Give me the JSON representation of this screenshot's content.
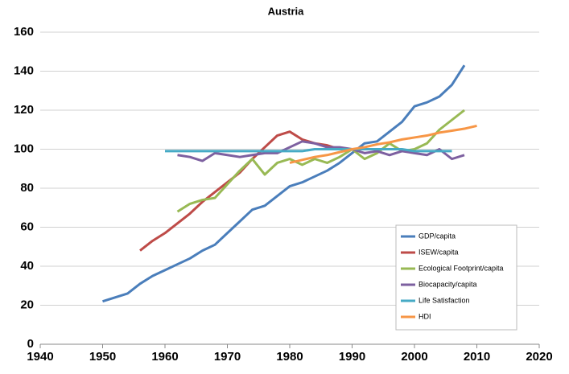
{
  "chart_data": {
    "type": "line",
    "title": "Austria",
    "x": [
      1950,
      1952,
      1954,
      1956,
      1958,
      1960,
      1962,
      1964,
      1966,
      1968,
      1970,
      1972,
      1974,
      1976,
      1978,
      1980,
      1982,
      1984,
      1986,
      1988,
      1990,
      1992,
      1994,
      1996,
      1998,
      2000,
      2002,
      2004,
      2006,
      2008,
      2010
    ],
    "series": [
      {
        "name": "GDP/capita",
        "color": "#4a7ebb",
        "values": [
          22,
          24,
          26,
          31,
          35,
          38,
          41,
          44,
          48,
          51,
          57,
          63,
          69,
          71,
          76,
          81,
          83,
          86,
          89,
          93,
          98,
          103,
          104,
          109,
          114,
          122,
          124,
          127,
          133,
          143,
          null
        ]
      },
      {
        "name": "ISEW/capita",
        "color": "#be4b48",
        "values": [
          null,
          null,
          null,
          48,
          53,
          57,
          62,
          67,
          73,
          78,
          83,
          88,
          95,
          101,
          107,
          109,
          105,
          103,
          102,
          100,
          null,
          null,
          null,
          null,
          null,
          null,
          null,
          null,
          null,
          null,
          null
        ]
      },
      {
        "name": "Ecological Footprint/capita",
        "color": "#98b954",
        "values": [
          null,
          null,
          null,
          null,
          null,
          null,
          68,
          72,
          74,
          75,
          82,
          89,
          95,
          87,
          93,
          95,
          92,
          95,
          93,
          96,
          100,
          95,
          98,
          103,
          99,
          100,
          103,
          110,
          115,
          120,
          null
        ]
      },
      {
        "name": "Biocapacity/capita",
        "color": "#7d60a0",
        "values": [
          null,
          null,
          null,
          null,
          null,
          null,
          97,
          96,
          94,
          98,
          97,
          96,
          97,
          98,
          98,
          101,
          104,
          103,
          101,
          101,
          100,
          98,
          99,
          97,
          99,
          98,
          97,
          100,
          95,
          97,
          null
        ]
      },
      {
        "name": "Life Satisfaction",
        "color": "#46aac5",
        "values": [
          null,
          null,
          null,
          null,
          null,
          99,
          99,
          99,
          99,
          99,
          99,
          99,
          99,
          99,
          99,
          99,
          99,
          100,
          100,
          100,
          100,
          100,
          100,
          100,
          100,
          99,
          99,
          99,
          99,
          null,
          null
        ]
      },
      {
        "name": "HDI",
        "color": "#f79646",
        "values": [
          null,
          null,
          null,
          null,
          null,
          null,
          null,
          null,
          null,
          null,
          null,
          null,
          null,
          null,
          null,
          93,
          94.5,
          96,
          97,
          98.5,
          100,
          101,
          102.5,
          103.5,
          105,
          106,
          107,
          108.5,
          109.5,
          110.5,
          112
        ]
      }
    ],
    "xlim": [
      1940,
      2020
    ],
    "xticks": [
      1940,
      1950,
      1960,
      1970,
      1980,
      1990,
      2000,
      2010,
      2020
    ],
    "ylim": [
      0,
      160
    ],
    "yticks": [
      0,
      20,
      40,
      60,
      80,
      100,
      120,
      140,
      160
    ],
    "grid": true,
    "legend": "lower right"
  }
}
